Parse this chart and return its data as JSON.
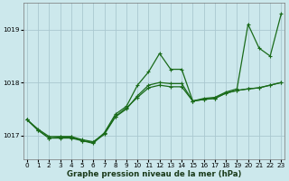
{
  "xlabel": "Graphe pression niveau de la mer (hPa)",
  "ylim": [
    1016.55,
    1019.5
  ],
  "yticks": [
    1017,
    1018,
    1019
  ],
  "xlim": [
    -0.3,
    23.3
  ],
  "xticks": [
    0,
    1,
    2,
    3,
    4,
    5,
    6,
    7,
    8,
    9,
    10,
    11,
    12,
    13,
    14,
    15,
    16,
    17,
    18,
    19,
    20,
    21,
    22,
    23
  ],
  "background_color": "#cce8ec",
  "grid_color": "#aac8d0",
  "line_color": "#1a6b1a",
  "series1": [
    1017.3,
    1017.1,
    1016.95,
    1016.95,
    1016.95,
    1016.9,
    1016.85,
    1017.05,
    1017.4,
    1017.55,
    1017.95,
    1018.2,
    1018.55,
    1018.25,
    1018.25,
    1017.65,
    1017.7,
    1017.72,
    1017.82,
    1017.88,
    1019.1,
    1018.65,
    1018.5,
    1019.3
  ],
  "series2": [
    1017.3,
    1017.1,
    1016.95,
    1016.97,
    1016.97,
    1016.9,
    1016.87,
    1017.02,
    1017.35,
    1017.5,
    1017.75,
    1017.95,
    1018.0,
    1017.98,
    1017.98,
    1017.65,
    1017.68,
    1017.7,
    1017.8,
    1017.85,
    1017.88,
    1017.9,
    1017.95,
    1018.0
  ],
  "series3": [
    1017.3,
    1017.12,
    1016.98,
    1016.98,
    1016.98,
    1016.92,
    1016.88,
    1017.04,
    1017.36,
    1017.52,
    1017.72,
    1017.9,
    1017.95,
    1017.92,
    1017.92,
    1017.65,
    1017.68,
    1017.7,
    1017.8,
    1017.85,
    1017.88,
    1017.9,
    1017.95,
    1018.0
  ],
  "line_width": 0.9,
  "marker": "+",
  "marker_size": 3.5,
  "tick_fontsize": 5.2,
  "xlabel_fontsize": 6.2
}
